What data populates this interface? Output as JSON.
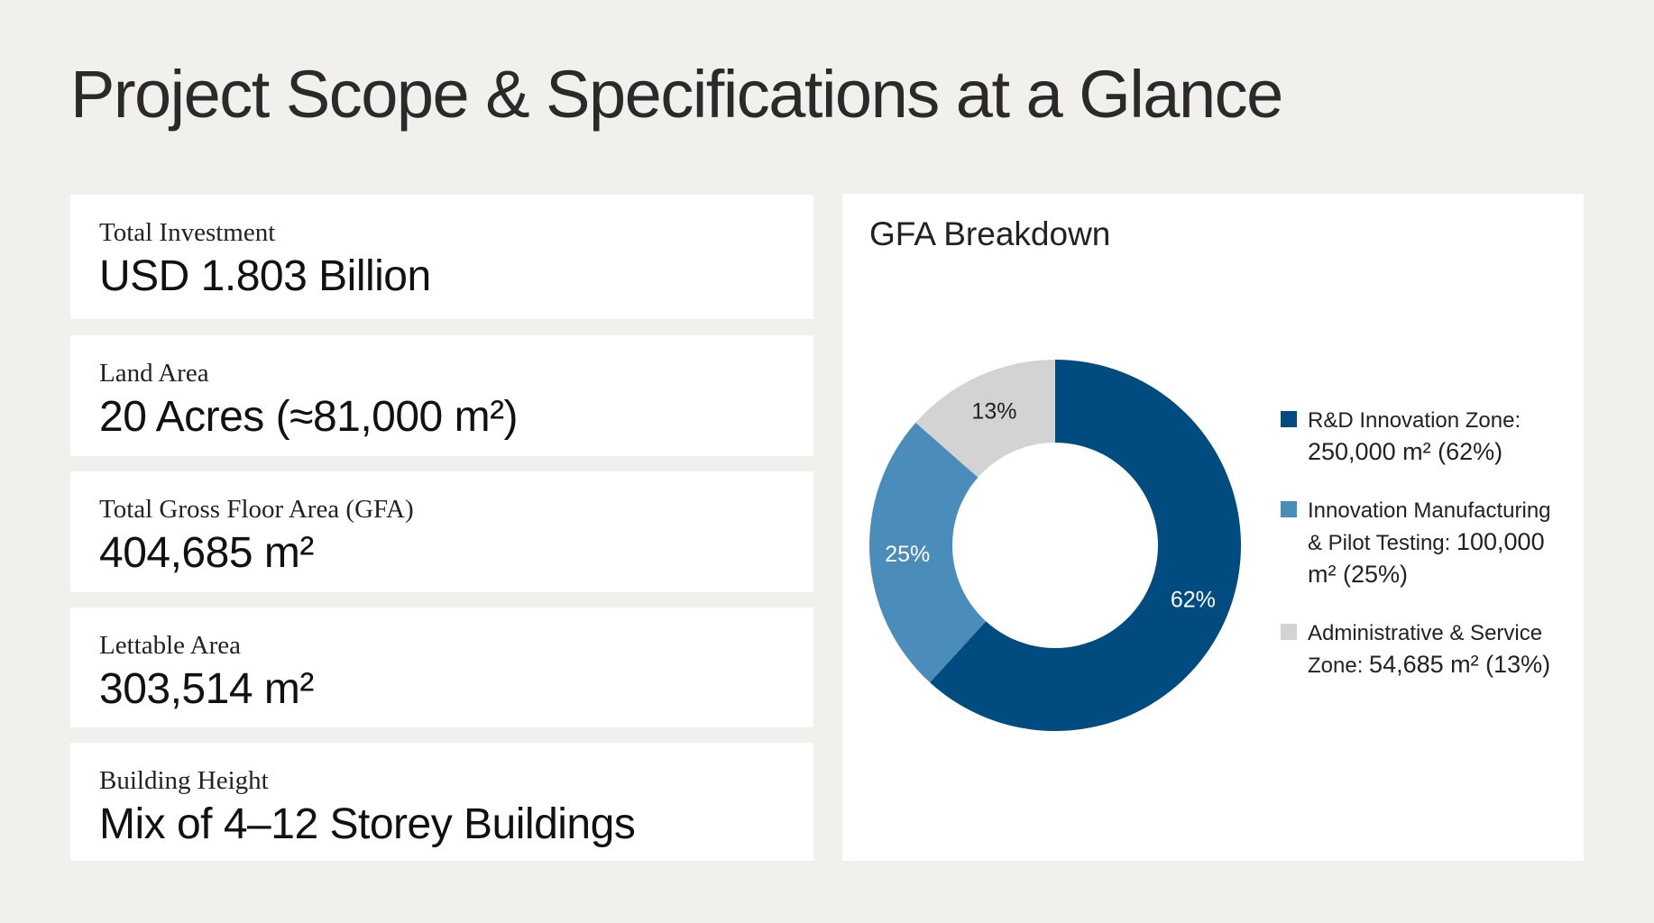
{
  "title": "Project Scope & Specifications at a Glance",
  "cards": [
    {
      "label": "Total Investment",
      "value": "USD 1.803 Billion"
    },
    {
      "label": "Land Area",
      "value": "20 Acres (≈81,000 m²)"
    },
    {
      "label": "Total Gross Floor Area (GFA)",
      "value": "404,685 m²"
    },
    {
      "label": "Lettable Area",
      "value": "303,514 m²"
    },
    {
      "label": "Building Height",
      "value": "Mix of 4–12 Storey Buildings"
    }
  ],
  "chart_data": {
    "type": "pie",
    "title": "GFA Breakdown",
    "donut": true,
    "categories": [
      "R&D Innovation Zone",
      "Innovation Manufacturing & Pilot Testing",
      "Administrative & Service Zone"
    ],
    "values": [
      250000,
      100000,
      54685
    ],
    "percent_labels": [
      "62%",
      "25%",
      "13%"
    ],
    "colors": [
      "#004c80",
      "#4a8dba",
      "#d3d3d3"
    ],
    "label_colors": [
      "#ffffff",
      "#ffffff",
      "#222222"
    ],
    "legend": [
      {
        "name": "R&D Innovation Zone:",
        "value": "250,000 m² (62%)"
      },
      {
        "name": "Innovation Manufacturing & Pilot Testing:",
        "value": "100,000 m² (25%)"
      },
      {
        "name": "Administrative & Service Zone:",
        "value": "54,685 m² (13%)"
      }
    ],
    "legend_position": "right"
  }
}
